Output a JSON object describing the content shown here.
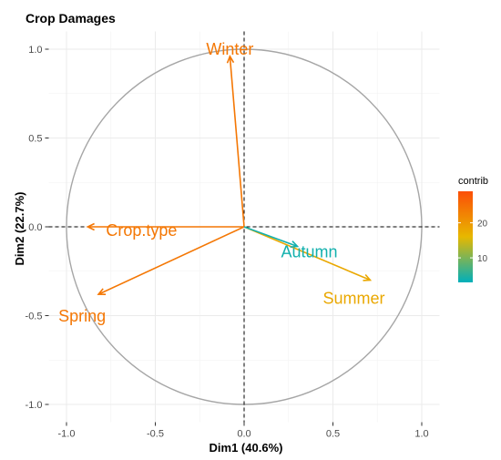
{
  "chart_data": {
    "type": "pca-variable-correlation-circle",
    "title": "Crop Damages",
    "xlabel": "Dim1 (40.6%)",
    "ylabel": "Dim2 (22.7%)",
    "xlim": [
      -1.1,
      1.1
    ],
    "ylim": [
      -1.1,
      1.1
    ],
    "xticks": [
      -1.0,
      -0.5,
      0.0,
      0.5,
      1.0
    ],
    "yticks": [
      -1.0,
      -0.5,
      0.0,
      0.5,
      1.0
    ],
    "xtick_labels": [
      "-1.0",
      "-0.5",
      "0.0",
      "0.5",
      "1.0"
    ],
    "ytick_labels": [
      "-1.0",
      "-0.5",
      "0.0",
      "0.5",
      "1.0"
    ],
    "grid": true,
    "unit_circle": true,
    "variables": [
      {
        "name": "Winter",
        "x": -0.08,
        "y": 0.96,
        "contrib": 24
      },
      {
        "name": "Crop.type",
        "x": -0.88,
        "y": 0.0,
        "contrib": 24
      },
      {
        "name": "Spring",
        "x": -0.82,
        "y": -0.38,
        "contrib": 24
      },
      {
        "name": "Summer",
        "x": 0.71,
        "y": -0.3,
        "contrib": 18
      },
      {
        "name": "Autumn",
        "x": 0.3,
        "y": -0.11,
        "contrib": 4
      }
    ],
    "legend": {
      "title": "contrib",
      "placement": "right",
      "ticks": [
        10,
        20
      ],
      "range": [
        3,
        29
      ],
      "colors": [
        "#00AFBB",
        "#E7B800",
        "#FC4E07"
      ]
    }
  }
}
